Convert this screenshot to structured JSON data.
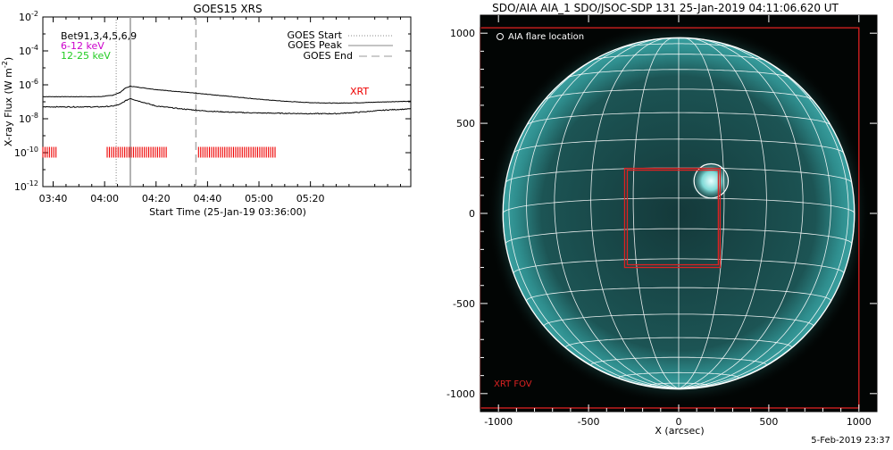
{
  "chart_data": [
    {
      "type": "line",
      "title": "GOES15 XRS",
      "xlabel": "Start Time (25-Jan-19 03:36:00)",
      "ylabel": "X-ray Flux (W m",
      "ylabel_unit_exp": "-2",
      "ylabel_close": ")",
      "y_scale": "log",
      "ylim_exp": [
        -12,
        -2
      ],
      "y_ticks": [
        {
          "base": "10",
          "exp": "-2",
          "value_exp": -2
        },
        {
          "base": "10",
          "exp": "-4",
          "value_exp": -4
        },
        {
          "base": "10",
          "exp": "-6",
          "value_exp": -6
        },
        {
          "base": "10",
          "exp": "-8",
          "value_exp": -8
        },
        {
          "base": "10",
          "exp": "-10",
          "value_exp": -10
        },
        {
          "base": "10",
          "exp": "-12",
          "value_exp": -12
        }
      ],
      "xlim_min": [
        216,
        359
      ],
      "x_ticks": [
        {
          "label": "03:40",
          "min": 220
        },
        {
          "label": "04:00",
          "min": 240
        },
        {
          "label": "04:20",
          "min": 260
        },
        {
          "label": "04:40",
          "min": 280
        },
        {
          "label": "05:00",
          "min": 300
        },
        {
          "label": "05:20",
          "min": 320
        }
      ],
      "bands": {
        "text": "Bet91,3,4,5,6,9",
        "lo": "6-12 keV",
        "hi": "12-25 keV",
        "lo_color": "#cc00cc",
        "hi_color": "#22cc22"
      },
      "legend": {
        "start": "GOES Start",
        "peak": "GOES Peak",
        "end": "GOES End",
        "position": "top-right"
      },
      "markers": {
        "start_min": 244.5,
        "peak_min": 250,
        "end_min": 275.5
      },
      "xrt_label": "XRT",
      "xrt_color": "#ee0000",
      "series": [
        {
          "band": "low",
          "x_min": [
            216,
            238,
            243,
            246,
            248,
            250,
            252,
            260,
            270,
            280,
            290,
            300,
            310,
            320,
            330,
            340,
            350,
            359
          ],
          "log10_flux": [
            -6.7,
            -6.7,
            -6.62,
            -6.45,
            -6.2,
            -6.08,
            -6.12,
            -6.28,
            -6.42,
            -6.56,
            -6.7,
            -6.85,
            -6.97,
            -7.05,
            -7.08,
            -7.05,
            -7.0,
            -6.97
          ]
        },
        {
          "band": "high",
          "x_min": [
            216,
            238,
            243,
            246,
            248,
            250,
            252,
            260,
            270,
            280,
            290,
            300,
            310,
            320,
            330,
            340,
            350,
            359
          ],
          "log10_flux": [
            -7.3,
            -7.3,
            -7.26,
            -7.15,
            -6.95,
            -6.8,
            -6.9,
            -7.25,
            -7.42,
            -7.55,
            -7.62,
            -7.66,
            -7.68,
            -7.7,
            -7.7,
            -7.6,
            -7.48,
            -7.42
          ]
        }
      ],
      "xrt_obs_ranges_min": [
        [
          216,
          221.5
        ],
        [
          241,
          264.5
        ],
        [
          276.5,
          306.5
        ]
      ]
    },
    {
      "type": "scatter",
      "title": "SDO/AIA AIA_1 SDO/JSOC-SDP 131 25-Jan-2019 04:11:06.620 UT",
      "xlabel": "X (arcsec)",
      "ylabel": "",
      "xlim": [
        -1100,
        1100
      ],
      "ylim": [
        -1100,
        1100
      ],
      "x_ticks": [
        "-1000",
        "-500",
        "0",
        "500",
        "1000"
      ],
      "y_ticks": [
        "1000",
        "500",
        "0",
        "-500",
        "-1000"
      ],
      "solar_radius_arcsec": 975,
      "disk_color": "#3aa0a0",
      "grid_color": "#ffffff",
      "flare_legend": "AIA flare location",
      "flare_center": [
        180,
        180
      ],
      "flare_radius_arcsec": 95,
      "xrt_fov_label": "XRT FOV",
      "xrt_fov_box": [
        -1100,
        -1080,
        1000,
        1030
      ],
      "inner_box": [
        -300,
        -300,
        230,
        250
      ],
      "box_color": "#dd2222"
    }
  ],
  "footer": {
    "timestamp": "5-Feb-2019 23:37"
  }
}
